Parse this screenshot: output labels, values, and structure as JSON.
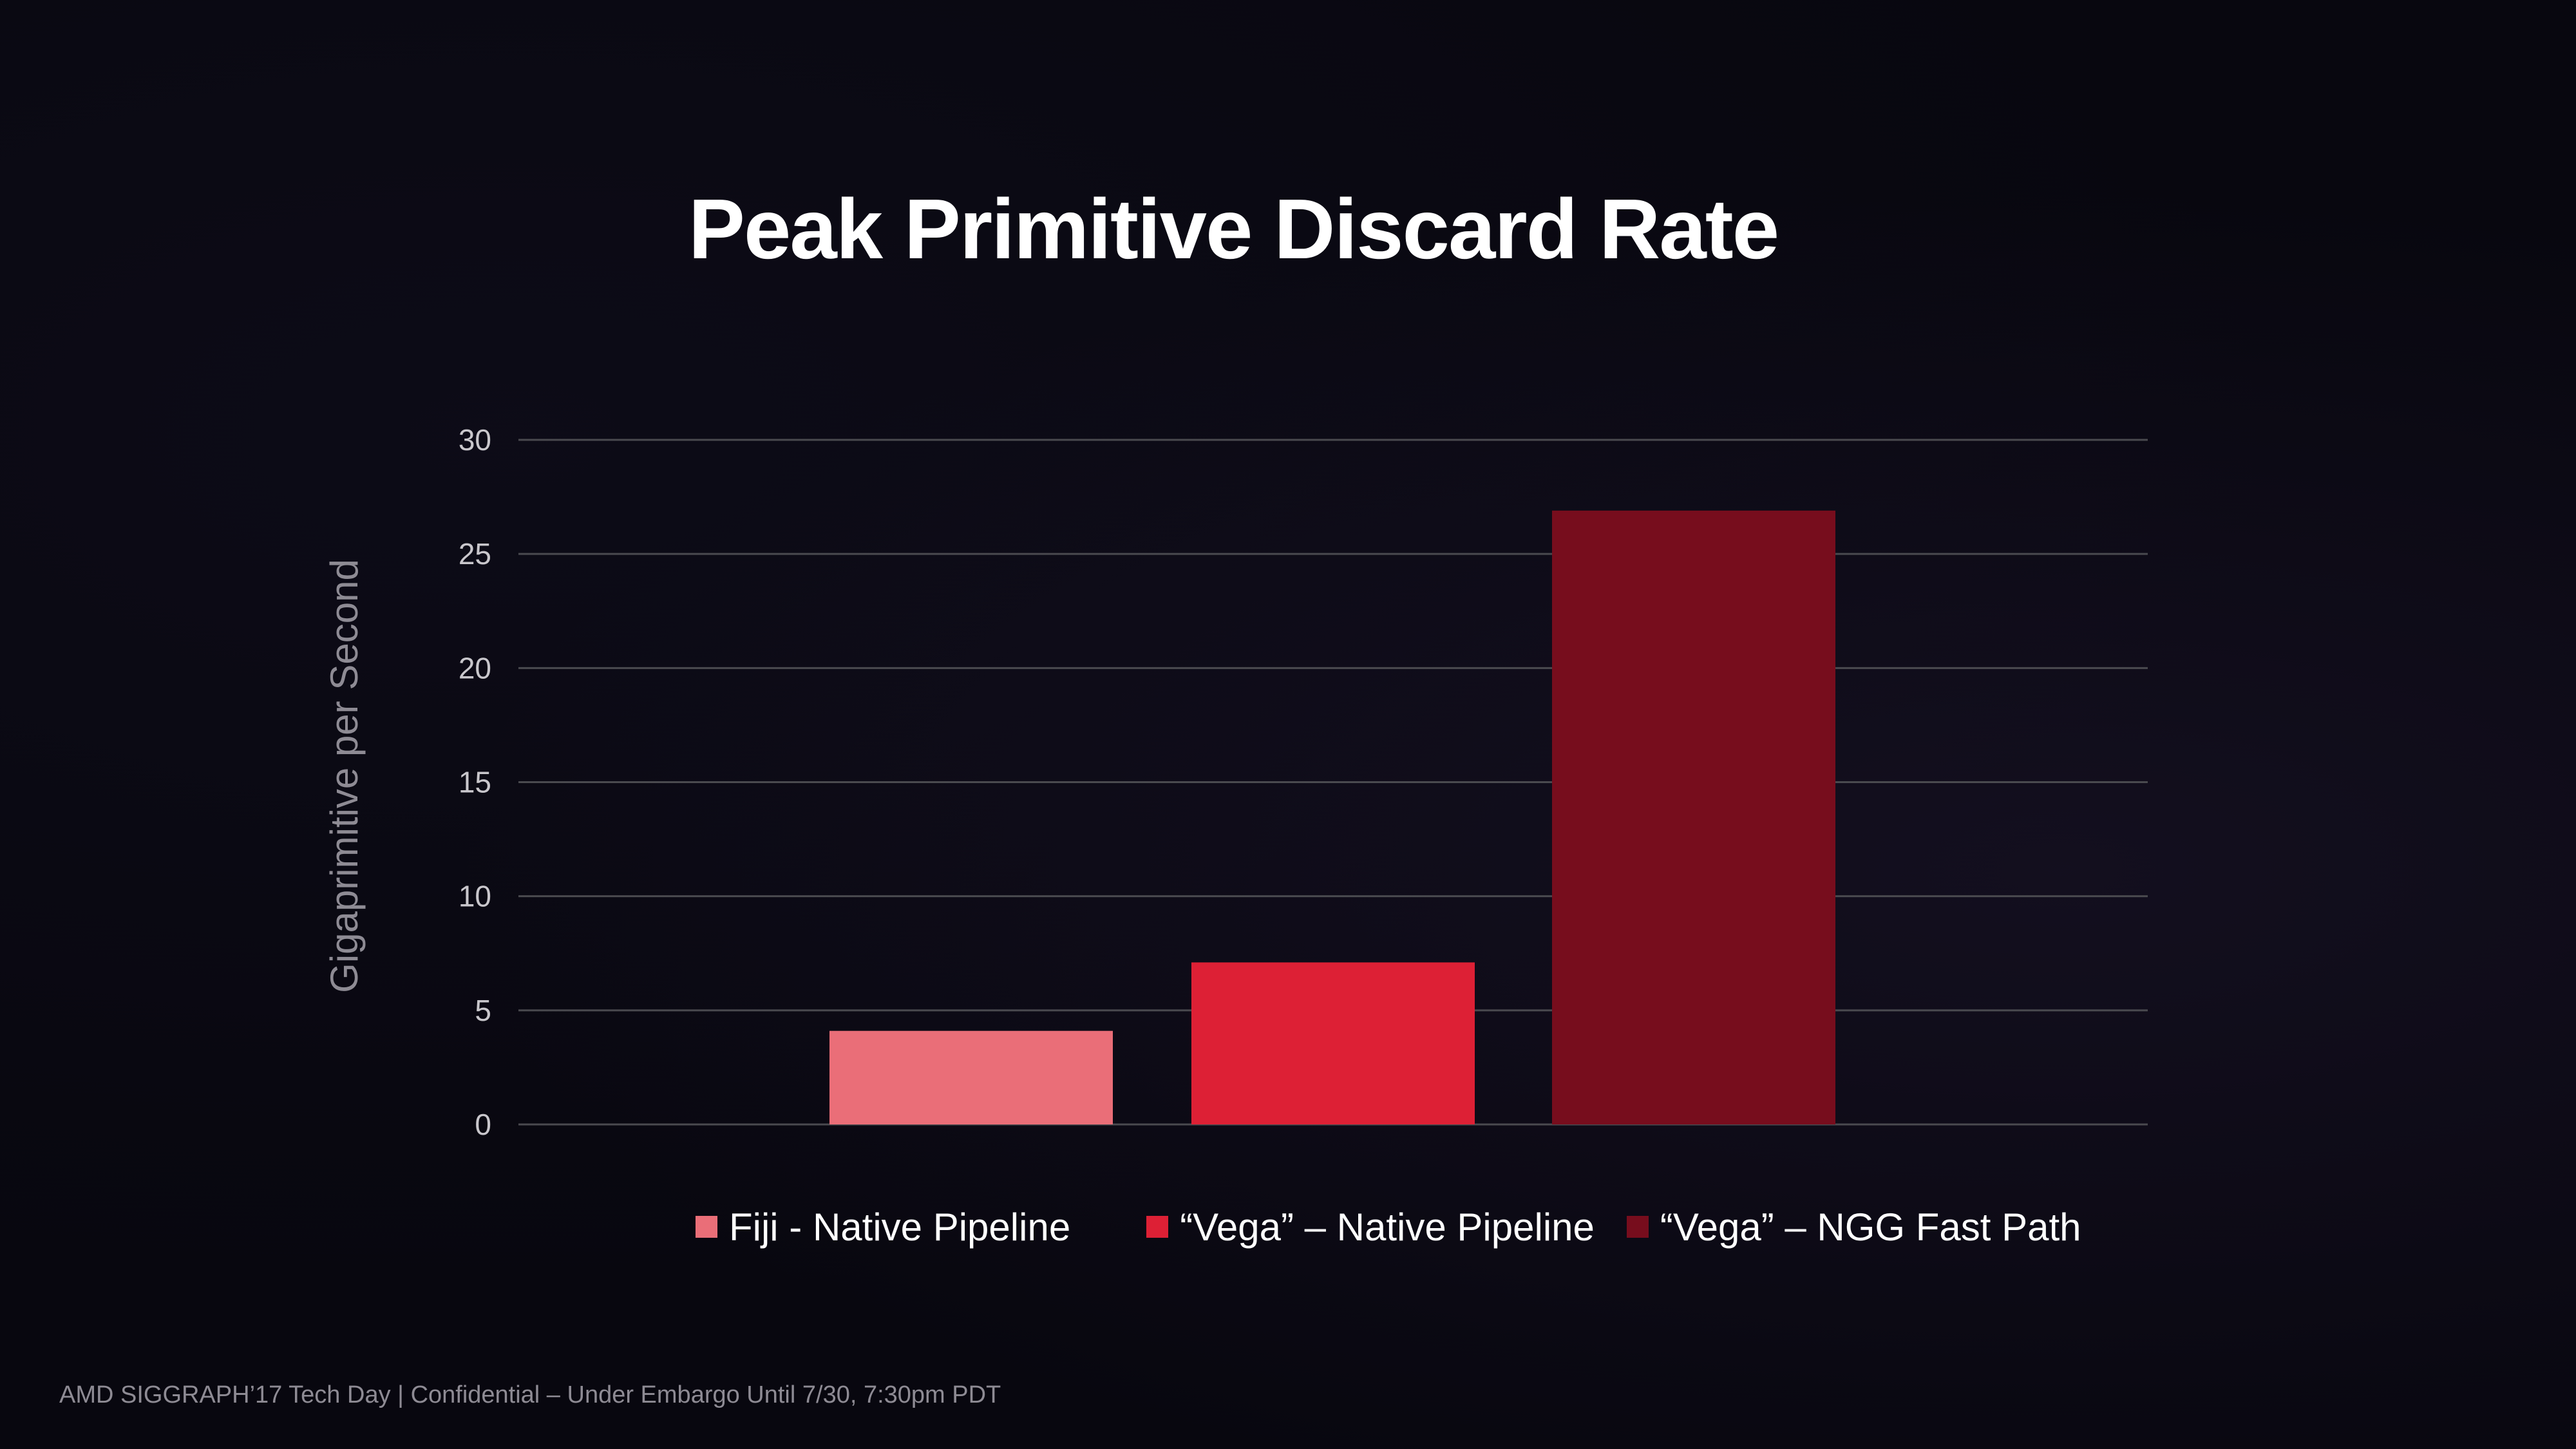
{
  "title": "Peak Primitive Discard Rate",
  "footer": "AMD SIGGRAPH’17 Tech Day | Confidential – Under Embargo Until 7/30, 7:30pm PDT",
  "colors": {
    "background": "#08070f",
    "gridline": "#4a4a4f",
    "tick_label": "#c9c7cc",
    "axis_label": "#8e8b94"
  },
  "chart_data": {
    "type": "bar",
    "title": "Peak Primitive Discard Rate",
    "xlabel": "",
    "ylabel": "Gigaprimitive per Second",
    "ylim": [
      0,
      30
    ],
    "yticks": [
      0,
      5,
      10,
      15,
      20,
      25,
      30
    ],
    "grid": true,
    "legend_position": "bottom",
    "series": [
      {
        "name": "Fiji - Native Pipeline",
        "value": 4.1,
        "color": "#ea6e78"
      },
      {
        "name": "“Vega” – Native Pipeline",
        "value": 7.1,
        "color": "#dd2035"
      },
      {
        "name": "“Vega” – NGG Fast Path",
        "value": 26.9,
        "color": "#770d1d"
      }
    ]
  }
}
